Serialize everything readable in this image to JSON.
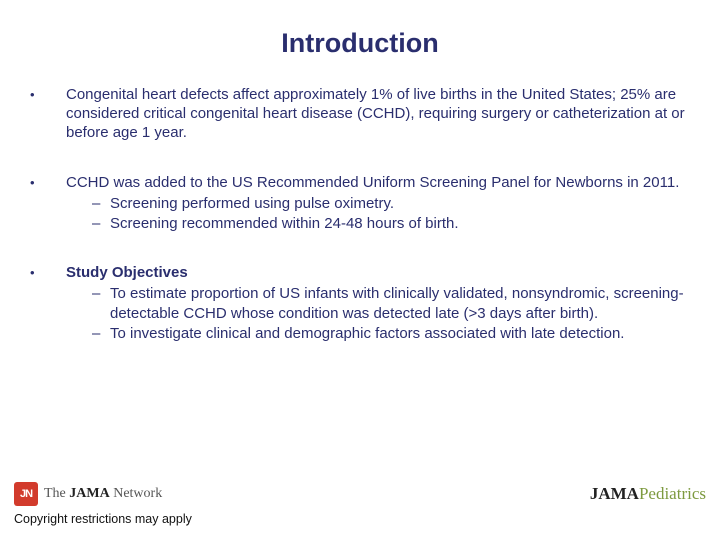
{
  "colors": {
    "text_primary": "#2a2e6e",
    "badge_bg": "#d23b2c",
    "pediatrics_green": "#7d9a3f",
    "background": "#ffffff"
  },
  "typography": {
    "title_fontsize": 27,
    "body_fontsize": 15,
    "font_family": "Arial"
  },
  "title": "Introduction",
  "bullets": [
    {
      "text": "Congenital heart defects affect approximately 1% of live births in the United States; 25% are considered critical congenital heart disease (CCHD), requiring surgery or catheterization at or before age 1 year.",
      "subs": []
    },
    {
      "text": "CCHD was added to the US Recommended Uniform Screening Panel for Newborns in 2011.",
      "subs": [
        "Screening performed using pulse oximetry.",
        "Screening recommended within 24-48 hours of birth."
      ]
    },
    {
      "text_bold": "Study Objectives",
      "subs": [
        "To estimate proportion of US infants with clinically validated, nonsyndromic, screening-detectable CCHD whose condition was detected late (>3 days after birth).",
        "To investigate clinical and demographic factors associated with late detection."
      ]
    }
  ],
  "footer": {
    "badge_text": "JN",
    "left_prefix": "The ",
    "left_brand": "JAMA",
    "left_suffix": " Network",
    "right_brand": "JAMA",
    "right_sub": "Pediatrics",
    "copyright": "Copyright restrictions may apply"
  }
}
